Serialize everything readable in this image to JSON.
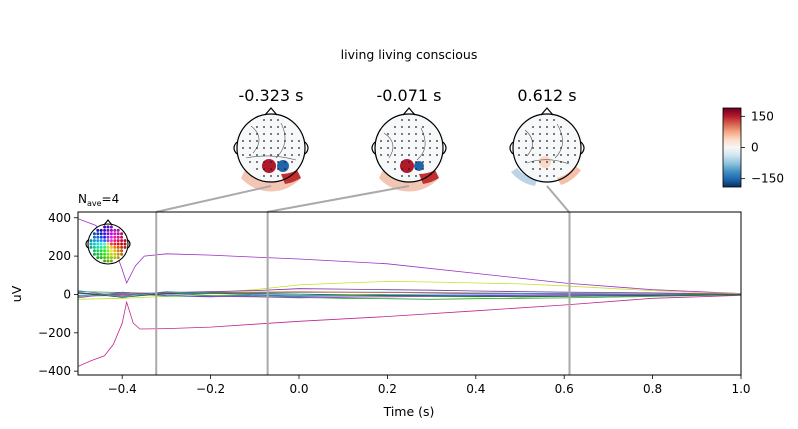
{
  "figure": {
    "suptitle": "living living conscious",
    "nave_base": "N",
    "nave_sub": "ave",
    "nave_value": "=4"
  },
  "topomaps": [
    {
      "time_label": "-0.323 s",
      "time": -0.323
    },
    {
      "time_label": "-0.071 s",
      "time": -0.071
    },
    {
      "time_label": "0.612 s",
      "time": 0.612
    }
  ],
  "colorbar": {
    "ticks": [
      150,
      0,
      -150
    ],
    "range": [
      -190,
      190
    ],
    "colormap": [
      "#053061",
      "#2166ac",
      "#4393c3",
      "#92c5de",
      "#d1e5f0",
      "#f7f7f7",
      "#fddbc7",
      "#f4a582",
      "#d6604d",
      "#b2182b",
      "#67001f"
    ]
  },
  "chart_data": {
    "type": "line",
    "xlabel": "Time (s)",
    "ylabel": "uV",
    "xlim": [
      -0.5,
      1.0
    ],
    "ylim": [
      -420,
      430
    ],
    "xticks": [
      -0.4,
      -0.2,
      0.0,
      0.2,
      0.4,
      0.6,
      0.8,
      1.0
    ],
    "xtick_labels": [
      "−0.4",
      "−0.2",
      "0.0",
      "0.2",
      "0.4",
      "0.6",
      "0.8",
      "1.0"
    ],
    "yticks": [
      400,
      200,
      0,
      -200,
      -400
    ],
    "ytick_labels": [
      "400",
      "200",
      "0",
      "−200",
      "−400"
    ],
    "grid": false,
    "vlines": [
      -0.323,
      -0.071,
      0.612
    ],
    "series": [
      {
        "color": "#9b30c8",
        "x": [
          -0.5,
          -0.46,
          -0.42,
          -0.4,
          -0.39,
          -0.37,
          -0.35,
          -0.3,
          -0.2,
          -0.1,
          0.0,
          0.2,
          0.4,
          0.6,
          0.8,
          1.0
        ],
        "y": [
          395,
          360,
          260,
          130,
          60,
          150,
          200,
          212,
          205,
          195,
          185,
          160,
          110,
          60,
          25,
          5
        ]
      },
      {
        "color": "#c02690",
        "x": [
          -0.5,
          -0.47,
          -0.44,
          -0.42,
          -0.4,
          -0.39,
          -0.375,
          -0.36,
          -0.3,
          -0.2,
          -0.1,
          0.0,
          0.2,
          0.4,
          0.6,
          0.8,
          1.0
        ],
        "y": [
          -375,
          -345,
          -320,
          -260,
          -150,
          -40,
          -150,
          -180,
          -178,
          -170,
          -155,
          -140,
          -115,
          -85,
          -55,
          -20,
          -5
        ]
      },
      {
        "color": "#c8e030",
        "x": [
          -0.5,
          -0.4,
          -0.3,
          -0.2,
          -0.1,
          0.0,
          0.1,
          0.2,
          0.3,
          0.4,
          0.5,
          0.6,
          0.7,
          0.8,
          0.9,
          1.0
        ],
        "y": [
          -25,
          -20,
          -10,
          10,
          25,
          50,
          60,
          68,
          65,
          60,
          55,
          45,
          32,
          20,
          10,
          5
        ]
      },
      {
        "color": "#2aa02a",
        "x": [
          -0.5,
          -0.4,
          -0.3,
          -0.2,
          -0.1,
          0.0,
          0.1,
          0.2,
          0.3,
          0.4,
          0.5,
          0.6,
          0.7,
          0.8,
          0.9,
          1.0
        ],
        "y": [
          15,
          10,
          5,
          -5,
          -10,
          -15,
          -20,
          -22,
          -25,
          -22,
          -20,
          -18,
          -14,
          -10,
          -6,
          -3
        ]
      },
      {
        "color": "#20b8a8",
        "x": [
          -0.5,
          -0.4,
          -0.3,
          -0.2,
          -0.1,
          0.0,
          0.1,
          0.2,
          0.3,
          0.4,
          0.5,
          0.6,
          0.7,
          0.8,
          0.9,
          1.0
        ],
        "y": [
          -10,
          -5,
          0,
          5,
          8,
          10,
          12,
          12,
          10,
          8,
          6,
          5,
          4,
          3,
          2,
          0
        ]
      },
      {
        "color": "#7030a0",
        "x": [
          -0.5,
          -0.4,
          -0.3,
          -0.2,
          -0.1,
          0.0,
          0.1,
          0.2,
          0.3,
          0.4,
          0.5,
          0.6,
          0.7,
          0.8,
          0.9,
          1.0
        ],
        "y": [
          5,
          0,
          10,
          15,
          20,
          30,
          28,
          25,
          22,
          18,
          15,
          12,
          10,
          8,
          5,
          2
        ]
      },
      {
        "color": "#3050e0",
        "x": [
          -0.5,
          -0.4,
          -0.3,
          -0.2,
          -0.1,
          0.0,
          0.1,
          0.2,
          0.3,
          0.4,
          0.5,
          0.6,
          0.7,
          0.8,
          0.9,
          1.0
        ],
        "y": [
          -5,
          5,
          -8,
          -12,
          -5,
          -10,
          -8,
          -6,
          -5,
          -4,
          -3,
          -2,
          -2,
          -1,
          0,
          0
        ]
      },
      {
        "color": "#e05040",
        "x": [
          -0.5,
          -0.4,
          -0.3,
          -0.2,
          -0.1,
          0.0,
          0.1,
          0.2,
          0.3,
          0.4,
          0.5,
          0.6,
          0.7,
          0.8,
          0.9,
          1.0
        ],
        "y": [
          8,
          -5,
          6,
          10,
          12,
          14,
          12,
          10,
          8,
          6,
          5,
          4,
          3,
          2,
          1,
          0
        ]
      },
      {
        "color": "#60c040",
        "x": [
          -0.5,
          -0.4,
          -0.3,
          -0.2,
          -0.1,
          0.0,
          0.1,
          0.2,
          0.3,
          0.4,
          0.5,
          0.6,
          0.7,
          0.8,
          0.9,
          1.0
        ],
        "y": [
          -12,
          8,
          -10,
          -6,
          -2,
          -5,
          -6,
          -8,
          -10,
          -12,
          -10,
          -8,
          -6,
          -4,
          -2,
          0
        ]
      },
      {
        "color": "#3a8ad0",
        "x": [
          -0.5,
          -0.4,
          -0.3,
          -0.2,
          -0.1,
          0.0,
          0.1,
          0.2,
          0.3,
          0.4,
          0.5,
          0.6,
          0.7,
          0.8,
          0.9,
          1.0
        ],
        "y": [
          20,
          -10,
          15,
          5,
          0,
          -5,
          -3,
          0,
          2,
          3,
          4,
          3,
          2,
          1,
          0,
          0
        ]
      },
      {
        "color": "#a040c0",
        "x": [
          -0.5,
          -0.4,
          -0.3,
          -0.2,
          -0.1,
          0.0,
          0.1,
          0.2,
          0.3,
          0.4,
          0.5,
          0.6,
          0.7,
          0.8,
          0.9,
          1.0
        ],
        "y": [
          -18,
          12,
          -5,
          -10,
          -12,
          -18,
          -15,
          -12,
          -10,
          -8,
          -6,
          -5,
          -4,
          -3,
          -2,
          -1
        ]
      },
      {
        "color": "#106030",
        "x": [
          -0.5,
          -0.4,
          -0.3,
          -0.2,
          -0.1,
          0.0,
          0.1,
          0.2,
          0.3,
          0.4,
          0.5,
          0.6,
          0.7,
          0.8,
          0.9,
          1.0
        ],
        "y": [
          10,
          -15,
          5,
          8,
          5,
          2,
          -2,
          -5,
          -8,
          -10,
          -12,
          -10,
          -8,
          -6,
          -3,
          -1
        ]
      }
    ]
  }
}
